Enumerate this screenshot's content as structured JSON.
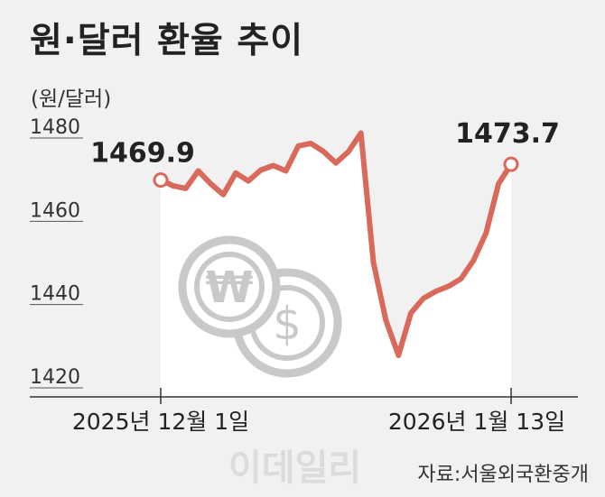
{
  "title": "원·달러 환율 추이",
  "unit": "(원/달러)",
  "source": "자료:서울외국환중개",
  "watermark": "이데일리",
  "colors": {
    "line": "#d9695a",
    "area": "#ffffff",
    "background": "#f1f1f1",
    "icon": "#c9c9c9"
  },
  "icons": [
    "won-coin-icon",
    "dollar-coin-icon"
  ],
  "chart_data": {
    "type": "line",
    "ylim": [
      1420,
      1480
    ],
    "yticks": [
      "1420",
      "1440",
      "1460",
      "1480"
    ],
    "xlabels": [
      "2025년 12월 1일",
      "2026년 1월 13일"
    ],
    "start_label": "1469.9",
    "end_label": "1473.7",
    "values": [
      1469.9,
      1468.5,
      1467.9,
      1472.1,
      1469.0,
      1466.4,
      1471.6,
      1469.7,
      1472.3,
      1473.4,
      1472.1,
      1478.1,
      1478.7,
      1476.8,
      1474.0,
      1476.7,
      1481.2,
      1450.0,
      1436.2,
      1427.8,
      1438.0,
      1441.5,
      1443.2,
      1444.4,
      1446.2,
      1450.6,
      1457.2,
      1469.0,
      1473.7
    ],
    "grid": false
  }
}
